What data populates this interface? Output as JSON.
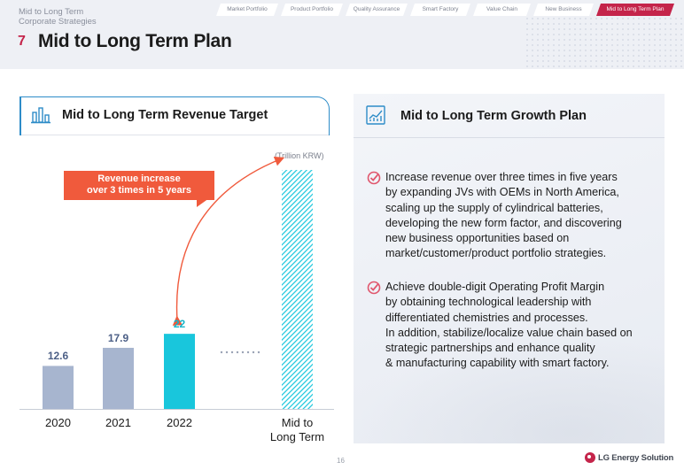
{
  "header": {
    "section_label_line1": "Mid to Long Term",
    "section_label_line2": "Corporate Strategies",
    "page_number": "7",
    "title": "Mid to Long Term Plan"
  },
  "tabs": [
    {
      "label": "Market Portfolio",
      "active": false
    },
    {
      "label": "Product Portfolio",
      "active": false
    },
    {
      "label": "Quality Assurance",
      "active": false
    },
    {
      "label": "Smart Factory",
      "active": false
    },
    {
      "label": "Value Chain",
      "active": false
    },
    {
      "label": "New Business",
      "active": false
    },
    {
      "label": "Mid to Long Term Plan",
      "active": true
    }
  ],
  "left_panel": {
    "title": "Mid to Long Term Revenue Target",
    "icon": "bar-chart-icon",
    "unit": "(Trillion KRW)",
    "callout_line1": "Revenue increase",
    "callout_line2": "over 3 times in 5 years"
  },
  "chart_data": {
    "type": "bar",
    "categories": [
      "2020",
      "2021",
      "2022",
      "Mid to Long Term"
    ],
    "values": [
      12.6,
      17.9,
      22,
      null
    ],
    "data_labels": [
      "12.6",
      "17.9",
      "22",
      ""
    ],
    "ylabel": "",
    "ylim": [
      0,
      70
    ],
    "grid": false,
    "colors": {
      "past": "#a7b5cf",
      "current": "#19c6dc",
      "target_hatch": "#19c6dc",
      "arrow": "#f05a3c"
    },
    "x_label_lines": {
      "target_line1": "Mid to",
      "target_line2": "Long Term"
    }
  },
  "right_panel": {
    "title": "Mid to Long Term Growth Plan",
    "icon": "growth-chart-icon",
    "bullets": [
      {
        "lines": [
          "Increase revenue over three times in five years",
          "by expanding JVs with OEMs in North America,",
          "scaling up the supply of cylindrical batteries,",
          "developing the new form factor, and discovering",
          "new business opportunities based on",
          "market/customer/product portfolio strategies."
        ]
      },
      {
        "lines": [
          "Achieve double-digit Operating Profit Margin",
          "by obtaining technological leadership with",
          "differentiated chemistries and processes.",
          "In addition, stabilize/localize value chain based on",
          "strategic partnerships and enhance quality",
          "& manufacturing capability with smart factory."
        ]
      }
    ]
  },
  "footer": {
    "page": "16",
    "brand": "LG Energy Solution"
  },
  "colors": {
    "accent": "#c4244a",
    "header_bg": "#eef0f5",
    "check": "#e0566d",
    "panel_line": "#2d8cc8"
  }
}
